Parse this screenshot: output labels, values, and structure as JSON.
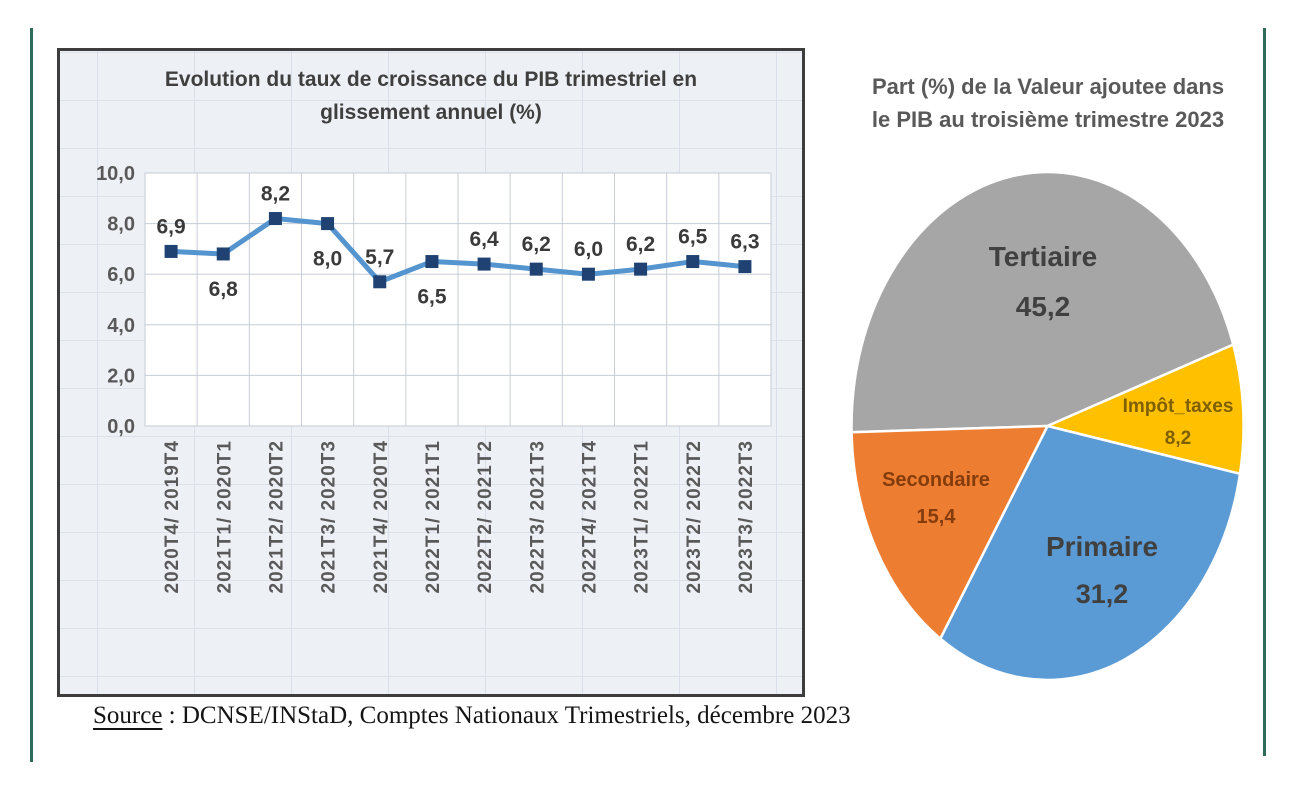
{
  "frame": {
    "color": "#2E6B5A"
  },
  "source": {
    "label": "Source",
    "separator": " : ",
    "text": "DCNSE/INStaD, Comptes Nationaux Trimestriels, décembre 2023"
  },
  "chart_data": [
    {
      "type": "line",
      "title": "Evolution du taux de croissance du PIB trimestriel en glissement annuel (%)",
      "title_lines": [
        "Evolution du taux de croissance du PIB trimestriel en",
        "glissement annuel (%)"
      ],
      "categories": [
        "2020T4/ 2019T4",
        "2021T1/ 2020T1",
        "2021T2/ 2020T2",
        "2021T3/ 2020T3",
        "2021T4/ 2020T4",
        "2022T1/ 2021T1",
        "2022T2/ 2021T2",
        "2022T3/ 2021T3",
        "2022T4/ 2021T4",
        "2023T1/ 2022T1",
        "2023T2/ 2022T2",
        "2023T3/ 2022T3"
      ],
      "values": [
        6.9,
        6.8,
        8.2,
        8.0,
        5.7,
        6.5,
        6.4,
        6.2,
        6.0,
        6.2,
        6.5,
        6.3
      ],
      "value_labels": [
        "6,9",
        "6,8",
        "8,2",
        "8,0",
        "5,7",
        "6,5",
        "6,4",
        "6,2",
        "6,0",
        "6,2",
        "6,5",
        "6,3"
      ],
      "label_positions": [
        "above",
        "below",
        "above",
        "below",
        "above",
        "below",
        "above",
        "above",
        "above",
        "above",
        "above",
        "above"
      ],
      "xlabel": "",
      "ylabel": "",
      "ylim": [
        0,
        10
      ],
      "ytick_labels": [
        "0,0",
        "2,0",
        "4,0",
        "6,0",
        "8,0",
        "10,0"
      ],
      "grid": true,
      "legend": "none",
      "line_color": "#5494CF",
      "marker_color": "#1F4272",
      "marker_shape": "square",
      "axis_text_color": "#595959",
      "value_text_color": "#3a3a3a",
      "plot_bg": "#ffffff",
      "gridline_color": "#c6cdd7"
    },
    {
      "type": "pie",
      "title": "Part (%) de la Valeur ajoutee dans le PIB au troisième trimestre 2023",
      "title_lines": [
        "Part (%) de la Valeur ajoutee dans",
        "le PIB au troisième trimestre 2023"
      ],
      "start_angle_cw_from_12": 268.6,
      "legend": "none",
      "slices": [
        {
          "label": "Tertiaire",
          "value": 45.2,
          "value_label": "45,2",
          "color": "#A6A6A6",
          "label_color": "#404040"
        },
        {
          "label": "Impôt_taxes",
          "value": 8.2,
          "value_label": "8,2",
          "color": "#FFC000",
          "label_color": "#7F6000"
        },
        {
          "label": "Primaire",
          "value": 31.2,
          "value_label": "31,2",
          "color": "#5B9BD5",
          "label_color": "#404040"
        },
        {
          "label": "Secondaire",
          "value": 15.4,
          "value_label": "15,4",
          "color": "#ED7D31",
          "label_color": "#843C0C"
        }
      ]
    }
  ]
}
